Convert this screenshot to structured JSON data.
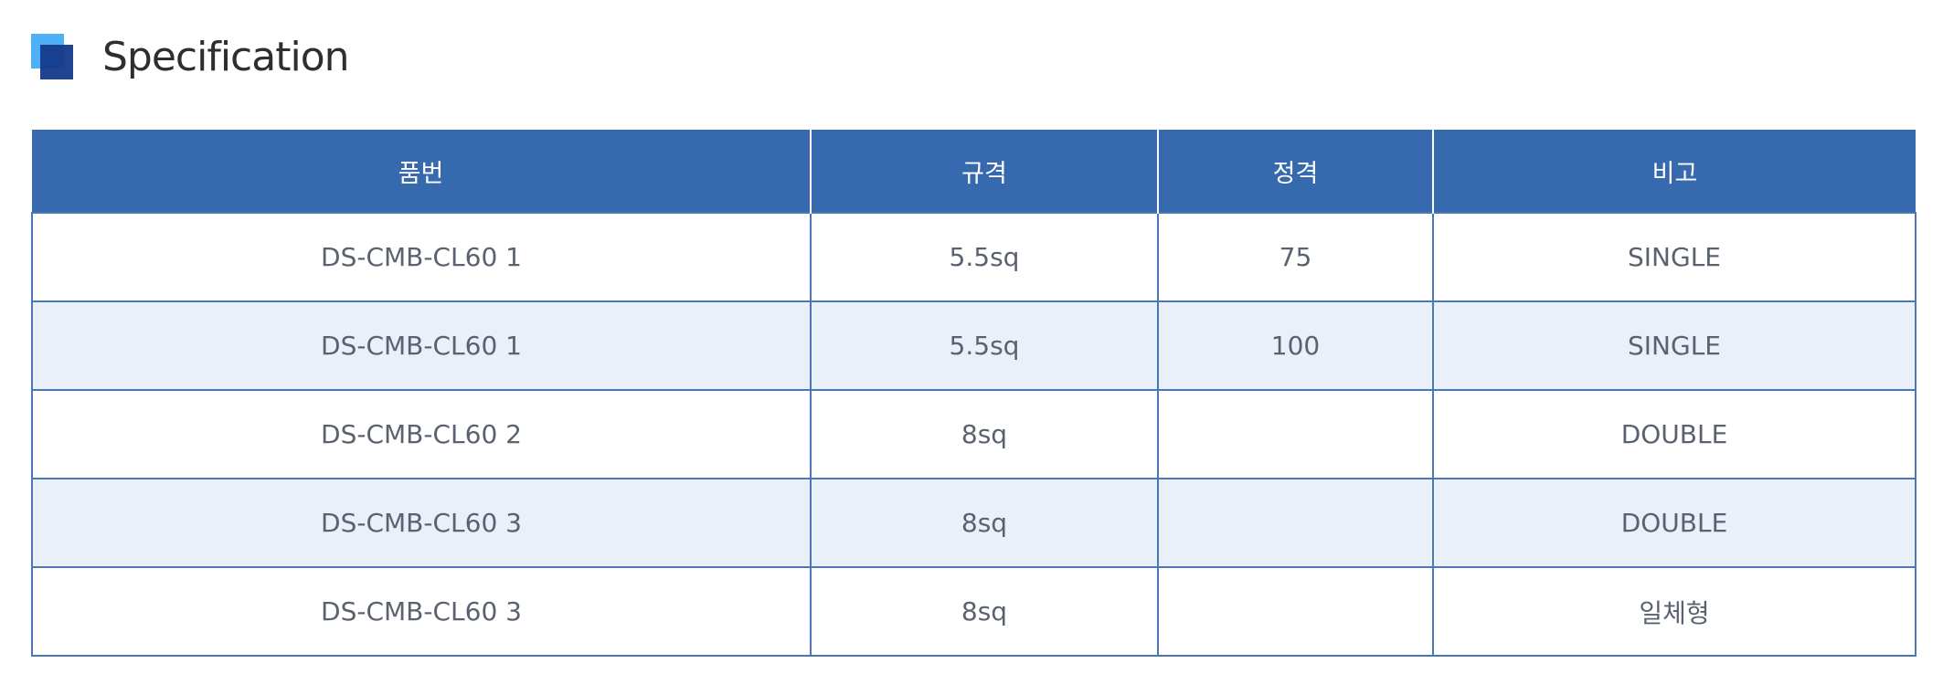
{
  "title": "Specification",
  "colors": {
    "header_bg": "#3769ae",
    "alt_row_bg": "#e9f0f9",
    "border": "#4a78b5",
    "icon_light": "#4eb0f7",
    "icon_dark": "#143a8a"
  },
  "table": {
    "headers": [
      "품번",
      "규격",
      "정격",
      "비고"
    ],
    "rows": [
      [
        "DS-CMB-CL60 1",
        "5.5sq",
        "75",
        "SINGLE"
      ],
      [
        "DS-CMB-CL60 1",
        "5.5sq",
        "100",
        "SINGLE"
      ],
      [
        "DS-CMB-CL60 2",
        "8sq",
        "",
        "DOUBLE"
      ],
      [
        "DS-CMB-CL60 3",
        "8sq",
        "",
        "DOUBLE"
      ],
      [
        "DS-CMB-CL60 3",
        "8sq",
        "",
        "일체형"
      ]
    ]
  }
}
